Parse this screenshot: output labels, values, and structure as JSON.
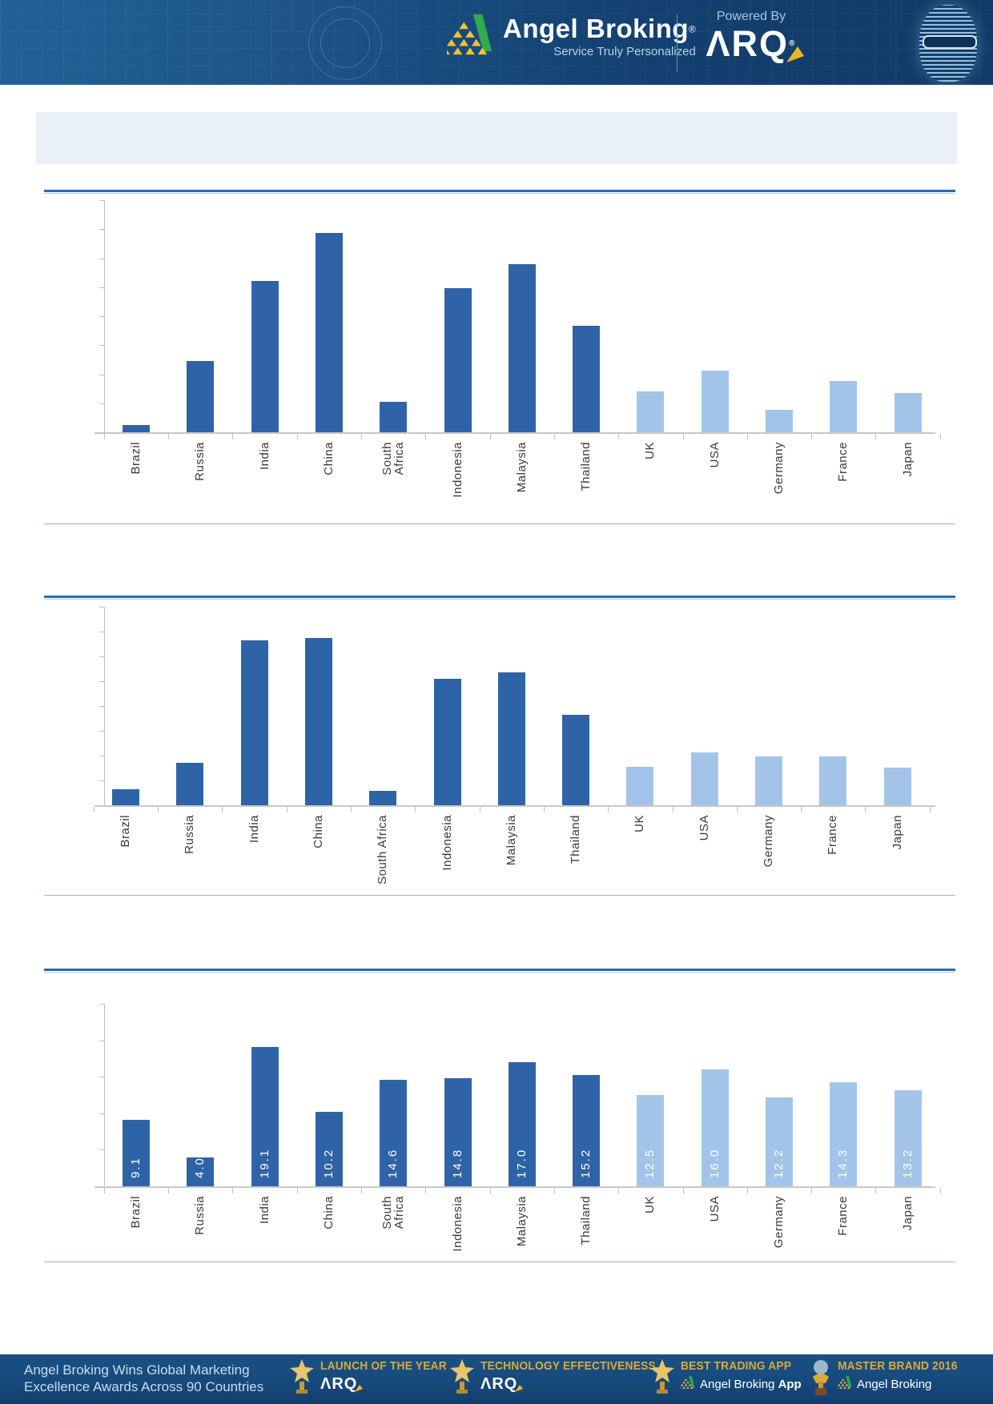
{
  "header": {
    "brand": "Angel Broking",
    "brand_reg": "®",
    "tagline": "Service Truly Personalized",
    "powered_by": "Powered By",
    "arq_logo": "ΛRQ",
    "arq_reg": "®",
    "colors": {
      "bar_navy": "#174b7e",
      "tagline_blue": "#b6d2e8",
      "logo_gold": "#F2C230",
      "logo_green": "#2FAC4B"
    }
  },
  "banner": {
    "background": "#E9F0F7"
  },
  "chart_data": [
    {
      "type": "bar",
      "title": "",
      "categories": [
        "Brazil",
        "Russia",
        "India",
        "China",
        "South\nAfrica",
        "Indonesia",
        "Malaysia",
        "Thailand",
        "UK",
        "USA",
        "Germany",
        "France",
        "Japan"
      ],
      "values": [
        1.3,
        12.3,
        26.0,
        34.4,
        5.3,
        24.8,
        29.0,
        18.3,
        7.1,
        10.6,
        3.9,
        8.8,
        6.7
      ],
      "ylim": [
        0,
        40
      ],
      "tick_step": 5,
      "grid": false,
      "value_labels_shown": false,
      "emerging_count": 8,
      "colors": {
        "emerging": "#2F63A8",
        "developed": "#A2C4E8",
        "axis": "#BFBFBF",
        "baseline": "#C8C8C8"
      }
    },
    {
      "type": "bar",
      "title": "",
      "categories": [
        "Brazil",
        "Russia",
        "India",
        "China",
        "South Africa",
        "Indonesia",
        "Malaysia",
        "Thailand",
        "UK",
        "USA",
        "Germany",
        "France",
        "Japan"
      ],
      "values": [
        3.3,
        8.6,
        33.3,
        33.7,
        2.9,
        25.5,
        26.8,
        18.2,
        7.8,
        10.6,
        9.9,
        9.8,
        7.6
      ],
      "ylim": [
        0,
        40
      ],
      "tick_step": 5,
      "grid": false,
      "value_labels_shown": false,
      "emerging_count": 8,
      "colors": {
        "emerging": "#2F63A8",
        "developed": "#A2C4E8",
        "axis": "#BFBFBF",
        "baseline": "#C8C8C8"
      }
    },
    {
      "type": "bar",
      "title": "",
      "categories": [
        "Brazil",
        "Russia",
        "India",
        "China",
        "South\nAfrica",
        "Indonesia",
        "Malaysia",
        "Thailand",
        "UK",
        "USA",
        "Germany",
        "France",
        "Japan"
      ],
      "values": [
        9.1,
        4.0,
        19.1,
        10.2,
        14.6,
        14.8,
        17.0,
        15.2,
        12.5,
        16.0,
        12.2,
        14.3,
        13.2
      ],
      "value_labels": [
        "9.1",
        "4.0",
        "19.1",
        "10.2",
        "14.6",
        "14.8",
        "17.0",
        "15.2",
        "12.5",
        "16.0",
        "12.2",
        "14.3",
        "13.2"
      ],
      "ylim": [
        0,
        25
      ],
      "tick_step": 5,
      "grid": false,
      "value_labels_shown": true,
      "emerging_count": 8,
      "colors": {
        "emerging": "#2F63A8",
        "developed": "#A2C4E8",
        "axis": "#BFBFBF",
        "baseline": "#C8C8C8",
        "value_label_text": "#FFFFFF"
      }
    }
  ],
  "section_rule_color": "#2A6AAF",
  "section_rule_sub_color": "#AECBE8",
  "section_divider_color": "#94B3D6",
  "footer": {
    "headline_line1": "Angel Broking Wins Global Marketing",
    "headline_line2": "Excellence Awards Across 90 Countries",
    "headline_color": "#c9ddef",
    "gold": "#DBA93C",
    "background": "#174a7c",
    "awards": [
      {
        "icon": "star-trophy-icon",
        "title": "LAUNCH OF THE YEAR",
        "sub_type": "arq",
        "sub": "ΛRQ"
      },
      {
        "icon": "star-trophy-icon",
        "title": "TECHNOLOGY EFFECTIVENESS",
        "sub_type": "arq",
        "sub": "ΛRQ"
      },
      {
        "icon": "star-trophy-icon",
        "title": "BEST TRADING APP",
        "sub_type": "angel",
        "sub": "Angel Broking",
        "sub_suffix": "App"
      },
      {
        "icon": "globe-trophy-icon",
        "title": "MASTER BRAND 2016",
        "sub_type": "angel",
        "sub": "Angel Broking",
        "sub_suffix": ""
      }
    ]
  }
}
